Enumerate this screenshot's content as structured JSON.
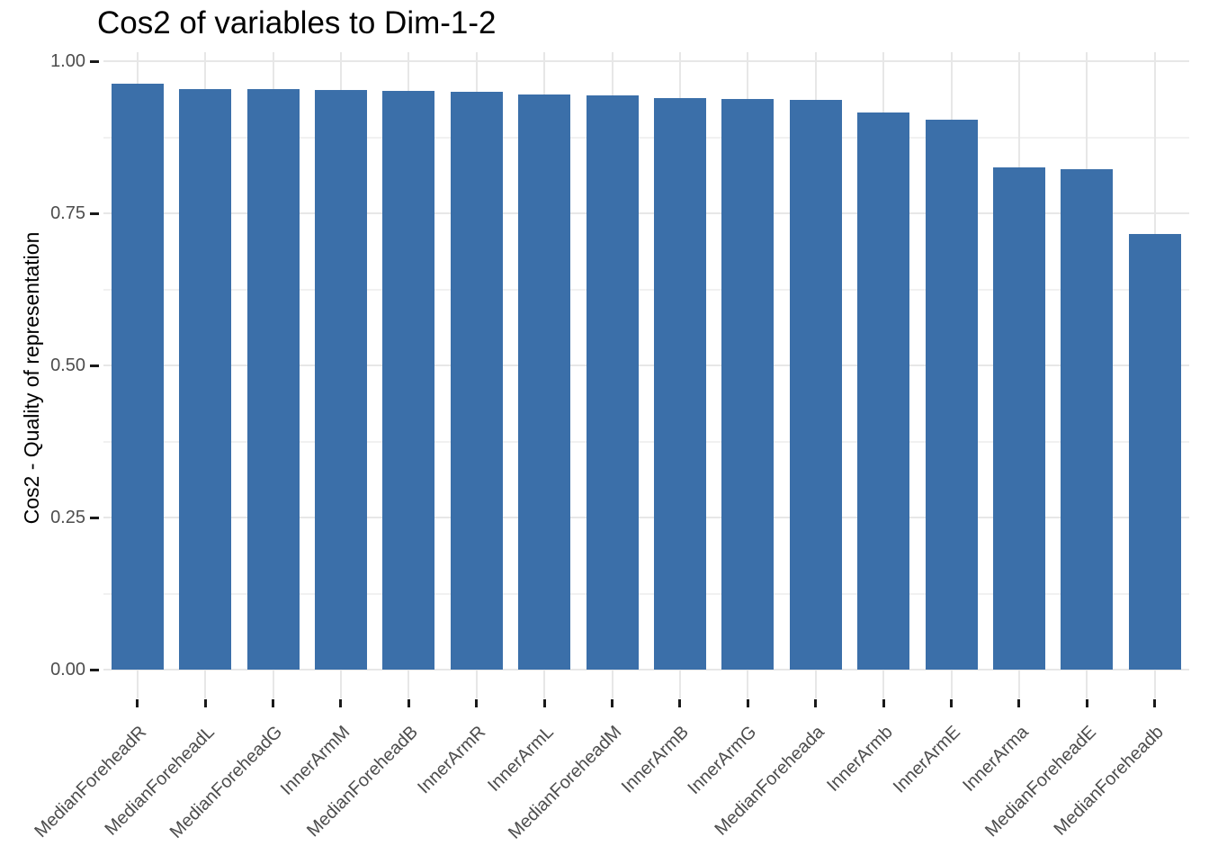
{
  "chart_data": {
    "type": "bar",
    "title": "Cos2 of variables to Dim-1-2",
    "xlabel": "",
    "ylabel": "Cos2 - Quality of representation",
    "categories": [
      "MedianForeheadR",
      "MedianForeheadL",
      "MedianForeheadG",
      "InnerArmM",
      "MedianForeheadB",
      "InnerArmR",
      "InnerArmL",
      "MedianForeheadM",
      "InnerArmB",
      "InnerArmG",
      "MedianForeheada",
      "InnerArmb",
      "InnerArmE",
      "InnerArma",
      "MedianForeheadE",
      "MedianForeheadb"
    ],
    "values": [
      0.963,
      0.954,
      0.954,
      0.952,
      0.951,
      0.95,
      0.945,
      0.944,
      0.939,
      0.938,
      0.937,
      0.916,
      0.904,
      0.825,
      0.823,
      0.716
    ],
    "ylim": [
      0,
      1.01
    ],
    "yticks": [
      0,
      0.25,
      0.5,
      0.75,
      1.0
    ],
    "ytick_labels": [
      "0.00",
      "0.25",
      "0.50",
      "0.75",
      "1.00"
    ],
    "yminor": [
      0.125,
      0.375,
      0.625,
      0.875
    ],
    "grid": true,
    "legend_position": "none",
    "bar_color": "#3b6fa9",
    "grid_major_color": "#e7e7e7",
    "grid_minor_color": "#f1f1f1",
    "axis_text_color": "#4d4d4d",
    "tick_mark_color": "#1a1a1a",
    "title_color": "#000000",
    "background_color": "#ffffff"
  }
}
